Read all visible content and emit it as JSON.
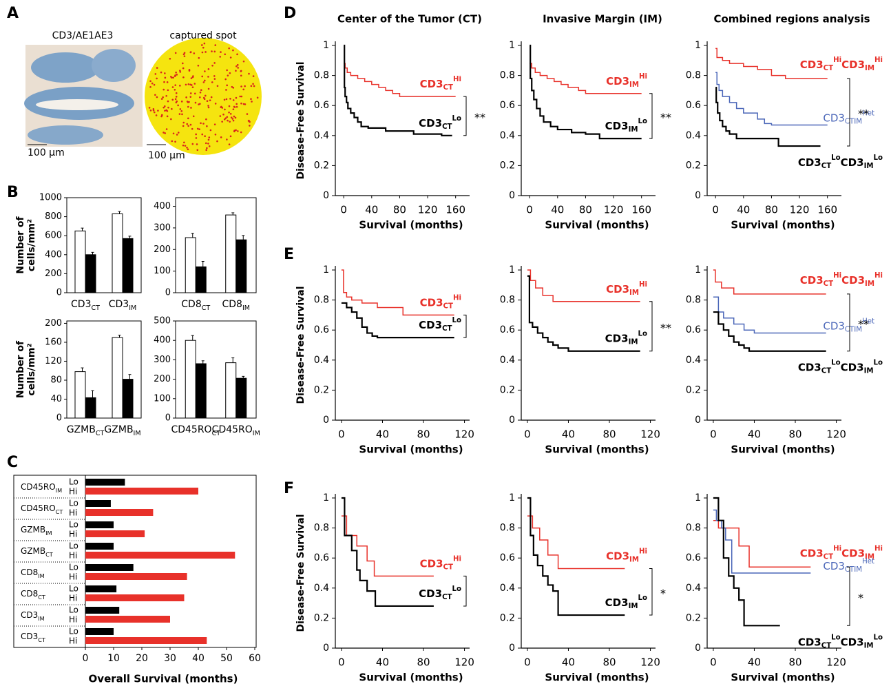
{
  "panel_labels": [
    "A",
    "B",
    "C",
    "D",
    "E",
    "F"
  ],
  "column_titles": [
    "Center of the Tumor (CT)",
    "Invasive Margin (IM)",
    "Combined regions analysis"
  ],
  "panel_a": {
    "image_titles": [
      "CD3/AE1AE3",
      "captured spot"
    ],
    "scale_labels": [
      "100 μm",
      "100 μm"
    ]
  },
  "chart_data": [
    {
      "type": "bar",
      "ylabel": [
        "Number of",
        "cells/mm²"
      ],
      "categories": [
        [
          "CD3",
          "CT"
        ],
        [
          "CD3",
          "IM"
        ]
      ],
      "series": [
        {
          "color": "#ffffff",
          "values": [
            650,
            830
          ],
          "errors": [
            30,
            25
          ]
        },
        {
          "color": "#000000",
          "values": [
            400,
            570
          ],
          "errors": [
            25,
            25
          ]
        }
      ],
      "ylim": [
        0,
        1000
      ],
      "yticks": [
        0,
        200,
        400,
        600,
        800,
        1000
      ]
    },
    {
      "type": "bar",
      "categories": [
        [
          "CD8",
          "CT"
        ],
        [
          "CD8",
          "IM"
        ]
      ],
      "series": [
        {
          "color": "#ffffff",
          "values": [
            255,
            360
          ],
          "errors": [
            20,
            10
          ]
        },
        {
          "color": "#000000",
          "values": [
            120,
            245
          ],
          "errors": [
            25,
            20
          ]
        }
      ],
      "ylim": [
        0,
        440
      ],
      "yticks": [
        0,
        100,
        200,
        300,
        400
      ]
    },
    {
      "type": "bar",
      "ylabel": [
        "Number of",
        "cells/mm²"
      ],
      "categories": [
        [
          "GZMB",
          "CT"
        ],
        [
          "GZMB",
          "IM"
        ]
      ],
      "series": [
        {
          "color": "#ffffff",
          "values": [
            98,
            170
          ],
          "errors": [
            8,
            5
          ]
        },
        {
          "color": "#000000",
          "values": [
            43,
            82
          ],
          "errors": [
            15,
            10
          ]
        }
      ],
      "ylim": [
        0,
        205
      ],
      "yticks": [
        0,
        40,
        80,
        120,
        160,
        200
      ]
    },
    {
      "type": "bar",
      "categories": [
        [
          "CD45RO",
          "CT"
        ],
        [
          "CD45RO",
          "IM"
        ]
      ],
      "series": [
        {
          "color": "#ffffff",
          "values": [
            400,
            285
          ],
          "errors": [
            25,
            25
          ]
        },
        {
          "color": "#000000",
          "values": [
            280,
            205
          ],
          "errors": [
            15,
            10
          ]
        }
      ],
      "ylim": [
        0,
        500
      ],
      "yticks": [
        0,
        100,
        200,
        300,
        400,
        500
      ]
    },
    {
      "type": "barh",
      "xlabel": "Overall Survival (months)",
      "categories": [
        [
          "CD45RO",
          "IM"
        ],
        [
          "CD45RO",
          "CT"
        ],
        [
          "GZMB",
          "IM"
        ],
        [
          "GZMB",
          "CT"
        ],
        [
          "CD8",
          "IM"
        ],
        [
          "CD8",
          "CT"
        ],
        [
          "CD3",
          "IM"
        ],
        [
          "CD3",
          "CT"
        ]
      ],
      "series": [
        {
          "name": "Lo",
          "color": "#000000",
          "values": [
            14,
            9,
            10,
            10,
            17,
            11,
            12,
            10
          ]
        },
        {
          "name": "Hi",
          "color": "#e8312a",
          "values": [
            40,
            24,
            21,
            53,
            36,
            35,
            30,
            43
          ]
        }
      ],
      "xlim": [
        0,
        60
      ],
      "xticks": [
        0,
        10,
        20,
        30,
        40,
        50,
        60
      ]
    },
    {
      "type": "line",
      "step": true,
      "ylabel": "Disease-Free Survival",
      "xlabel": "Survival (months)",
      "xlim": [
        -12,
        180
      ],
      "xticks": [
        0,
        40,
        80,
        120,
        160
      ],
      "ylim": [
        0,
        1
      ],
      "yticks": [
        0,
        0.2,
        0.4,
        0.6,
        0.8,
        1
      ],
      "significance": "**",
      "series": [
        {
          "name": [
            "CD3",
            "CT",
            "Hi"
          ],
          "color": "#e8312a",
          "x": [
            0,
            2,
            5,
            10,
            20,
            30,
            40,
            50,
            60,
            70,
            80,
            160
          ],
          "values": [
            0.88,
            0.85,
            0.82,
            0.8,
            0.78,
            0.76,
            0.74,
            0.72,
            0.7,
            0.68,
            0.66,
            0.66
          ]
        },
        {
          "name": [
            "CD3",
            "CT",
            "Lo"
          ],
          "color": "#000000",
          "x": [
            0,
            1,
            2,
            4,
            6,
            10,
            15,
            20,
            25,
            35,
            60,
            100,
            140,
            155
          ],
          "values": [
            1.0,
            0.72,
            0.66,
            0.62,
            0.58,
            0.55,
            0.52,
            0.49,
            0.46,
            0.45,
            0.43,
            0.41,
            0.4,
            0.4
          ]
        }
      ]
    },
    {
      "type": "line",
      "step": true,
      "xlabel": "Survival (months)",
      "xlim": [
        -12,
        180
      ],
      "xticks": [
        0,
        40,
        80,
        120,
        160
      ],
      "ylim": [
        0,
        1
      ],
      "yticks": [
        0,
        0.2,
        0.4,
        0.6,
        0.8,
        1
      ],
      "significance": "**",
      "series": [
        {
          "name": [
            "CD3",
            "IM",
            "Hi"
          ],
          "color": "#e8312a",
          "x": [
            0,
            3,
            8,
            15,
            25,
            35,
            45,
            55,
            70,
            80,
            160
          ],
          "values": [
            0.88,
            0.85,
            0.82,
            0.8,
            0.78,
            0.76,
            0.74,
            0.72,
            0.7,
            0.68,
            0.68
          ]
        },
        {
          "name": [
            "CD3",
            "IM",
            "Lo"
          ],
          "color": "#000000",
          "x": [
            0,
            1,
            3,
            6,
            10,
            15,
            20,
            30,
            40,
            60,
            80,
            100,
            160
          ],
          "values": [
            1.0,
            0.78,
            0.7,
            0.64,
            0.58,
            0.53,
            0.49,
            0.46,
            0.44,
            0.42,
            0.41,
            0.38,
            0.38
          ]
        }
      ]
    },
    {
      "type": "line",
      "step": true,
      "xlabel": "Survival (months)",
      "xlim": [
        -12,
        180
      ],
      "xticks": [
        0,
        40,
        80,
        120,
        160
      ],
      "ylim": [
        0,
        1
      ],
      "yticks": [
        0,
        0.2,
        0.4,
        0.6,
        0.8,
        1
      ],
      "significance": "**",
      "series": [
        {
          "name": [
            "CD3",
            "CT",
            "Hi",
            "CD3",
            "IM",
            "Hi"
          ],
          "color": "#e8312a",
          "x": [
            0,
            2,
            10,
            20,
            40,
            60,
            80,
            100,
            160
          ],
          "values": [
            0.98,
            0.92,
            0.9,
            0.88,
            0.86,
            0.84,
            0.8,
            0.78,
            0.78
          ]
        },
        {
          "name": [
            "CD3",
            "CTIM",
            "Het"
          ],
          "color": "#4a66b8",
          "x": [
            0,
            2,
            5,
            10,
            20,
            30,
            40,
            60,
            70,
            80,
            160
          ],
          "values": [
            0.82,
            0.74,
            0.7,
            0.66,
            0.62,
            0.58,
            0.55,
            0.51,
            0.48,
            0.47,
            0.47
          ]
        },
        {
          "name": [
            "CD3",
            "CT",
            "Lo",
            "CD3",
            "IM",
            "Lo"
          ],
          "color": "#000000",
          "x": [
            0,
            1,
            3,
            6,
            10,
            15,
            20,
            30,
            50,
            90,
            150
          ],
          "values": [
            0.72,
            0.62,
            0.55,
            0.5,
            0.46,
            0.43,
            0.41,
            0.38,
            0.38,
            0.33,
            0.33
          ]
        }
      ]
    },
    {
      "type": "line",
      "step": true,
      "ylabel": "Disease-Free Survival",
      "xlabel": "Survival (months)",
      "xlim": [
        -6,
        125
      ],
      "xticks": [
        0,
        40,
        80,
        120
      ],
      "ylim": [
        0,
        1
      ],
      "yticks": [
        0,
        0.2,
        0.4,
        0.6,
        0.8,
        1
      ],
      "series": [
        {
          "name": [
            "CD3",
            "CT",
            "Hi"
          ],
          "color": "#e8312a",
          "x": [
            0,
            2,
            5,
            10,
            20,
            35,
            60,
            110
          ],
          "values": [
            1.0,
            0.85,
            0.82,
            0.8,
            0.78,
            0.75,
            0.7,
            0.7
          ]
        },
        {
          "name": [
            "CD3",
            "CT",
            "Lo"
          ],
          "color": "#000000",
          "x": [
            0,
            5,
            10,
            15,
            20,
            25,
            30,
            35,
            110
          ],
          "values": [
            0.78,
            0.75,
            0.72,
            0.68,
            0.62,
            0.58,
            0.56,
            0.55,
            0.55
          ]
        }
      ]
    },
    {
      "type": "line",
      "step": true,
      "xlabel": "Survival (months)",
      "xlim": [
        -6,
        125
      ],
      "xticks": [
        0,
        40,
        80,
        120
      ],
      "ylim": [
        0,
        1
      ],
      "yticks": [
        0,
        0.2,
        0.4,
        0.6,
        0.8,
        1
      ],
      "significance": "**",
      "series": [
        {
          "name": [
            "CD3",
            "IM",
            "Hi"
          ],
          "color": "#e8312a",
          "x": [
            0,
            3,
            8,
            15,
            25,
            110
          ],
          "values": [
            1.0,
            0.93,
            0.88,
            0.83,
            0.79,
            0.79
          ]
        },
        {
          "name": [
            "CD3",
            "IM",
            "Lo"
          ],
          "color": "#000000",
          "x": [
            0,
            2,
            5,
            10,
            15,
            20,
            25,
            30,
            40,
            110
          ],
          "values": [
            0.96,
            0.65,
            0.62,
            0.58,
            0.55,
            0.52,
            0.5,
            0.48,
            0.46,
            0.46
          ]
        }
      ]
    },
    {
      "type": "line",
      "step": true,
      "xlabel": "Survival (months)",
      "xlim": [
        -6,
        125
      ],
      "xticks": [
        0,
        40,
        80,
        120
      ],
      "ylim": [
        0,
        1
      ],
      "yticks": [
        0,
        0.2,
        0.4,
        0.6,
        0.8,
        1
      ],
      "significance": "**",
      "series": [
        {
          "name": [
            "CD3",
            "CT",
            "Hi",
            "CD3",
            "IM",
            "Hi"
          ],
          "color": "#e8312a",
          "x": [
            0,
            2,
            8,
            20,
            110
          ],
          "values": [
            1.0,
            0.92,
            0.88,
            0.84,
            0.84
          ]
        },
        {
          "name": [
            "CD3",
            "CTIM",
            "Het"
          ],
          "color": "#4a66b8",
          "x": [
            0,
            5,
            10,
            20,
            30,
            40,
            110
          ],
          "values": [
            0.82,
            0.72,
            0.68,
            0.64,
            0.6,
            0.58,
            0.58
          ]
        },
        {
          "name": [
            "CD3",
            "CT",
            "Lo",
            "CD3",
            "IM",
            "Lo"
          ],
          "color": "#000000",
          "x": [
            0,
            5,
            10,
            15,
            20,
            25,
            30,
            35,
            110
          ],
          "values": [
            0.72,
            0.64,
            0.6,
            0.56,
            0.52,
            0.5,
            0.48,
            0.46,
            0.46
          ]
        }
      ]
    },
    {
      "type": "line",
      "step": true,
      "ylabel": "Disease-Free Survival",
      "xlabel": "Survival (months)",
      "xlim": [
        -6,
        125
      ],
      "xticks": [
        0,
        40,
        80,
        120
      ],
      "ylim": [
        0,
        1
      ],
      "yticks": [
        0,
        0.2,
        0.4,
        0.6,
        0.8,
        1
      ],
      "series": [
        {
          "name": [
            "CD3",
            "CT",
            "Hi"
          ],
          "color": "#e8312a",
          "x": [
            0,
            5,
            15,
            25,
            32,
            90
          ],
          "values": [
            0.88,
            0.75,
            0.68,
            0.58,
            0.48,
            0.48
          ]
        },
        {
          "name": [
            "CD3",
            "CT",
            "Lo"
          ],
          "color": "#000000",
          "x": [
            0,
            3,
            10,
            15,
            18,
            25,
            33,
            90
          ],
          "values": [
            1.0,
            0.75,
            0.65,
            0.52,
            0.45,
            0.38,
            0.28,
            0.28
          ]
        }
      ]
    },
    {
      "type": "line",
      "step": true,
      "xlabel": "Survival (months)",
      "xlim": [
        -6,
        125
      ],
      "xticks": [
        0,
        40,
        80,
        120
      ],
      "ylim": [
        0,
        1
      ],
      "yticks": [
        0,
        0.2,
        0.4,
        0.6,
        0.8,
        1
      ],
      "significance": "*",
      "series": [
        {
          "name": [
            "CD3",
            "IM",
            "Hi"
          ],
          "color": "#e8312a",
          "x": [
            0,
            5,
            12,
            20,
            30,
            95
          ],
          "values": [
            0.88,
            0.8,
            0.72,
            0.62,
            0.53,
            0.53
          ]
        },
        {
          "name": [
            "CD3",
            "IM",
            "Lo"
          ],
          "color": "#000000",
          "x": [
            0,
            3,
            6,
            10,
            15,
            20,
            25,
            30,
            95
          ],
          "values": [
            1.0,
            0.75,
            0.62,
            0.55,
            0.48,
            0.42,
            0.38,
            0.22,
            0.22
          ]
        }
      ]
    },
    {
      "type": "line",
      "step": true,
      "xlabel": "Survival (months)",
      "xlim": [
        -6,
        125
      ],
      "xticks": [
        0,
        40,
        80,
        120
      ],
      "ylim": [
        0,
        1
      ],
      "yticks": [
        0,
        0.2,
        0.4,
        0.6,
        0.8,
        1
      ],
      "significance": "*",
      "series": [
        {
          "name": [
            "CD3",
            "CT",
            "Hi",
            "CD3",
            "IM",
            "Hi"
          ],
          "color": "#e8312a",
          "x": [
            0,
            5,
            25,
            35,
            95
          ],
          "values": [
            0.85,
            0.8,
            0.68,
            0.54,
            0.54
          ]
        },
        {
          "name": [
            "CD3",
            "CTIM",
            "Het"
          ],
          "color": "#4a66b8",
          "x": [
            0,
            3,
            8,
            12,
            18,
            95
          ],
          "values": [
            0.92,
            0.85,
            0.8,
            0.72,
            0.5,
            0.5
          ]
        },
        {
          "name": [
            "CD3",
            "CT",
            "Lo",
            "CD3",
            "IM",
            "Lo"
          ],
          "color": "#000000",
          "x": [
            0,
            5,
            10,
            15,
            20,
            25,
            30,
            65
          ],
          "values": [
            1.0,
            0.85,
            0.6,
            0.48,
            0.4,
            0.32,
            0.15,
            0.15
          ]
        }
      ]
    }
  ]
}
